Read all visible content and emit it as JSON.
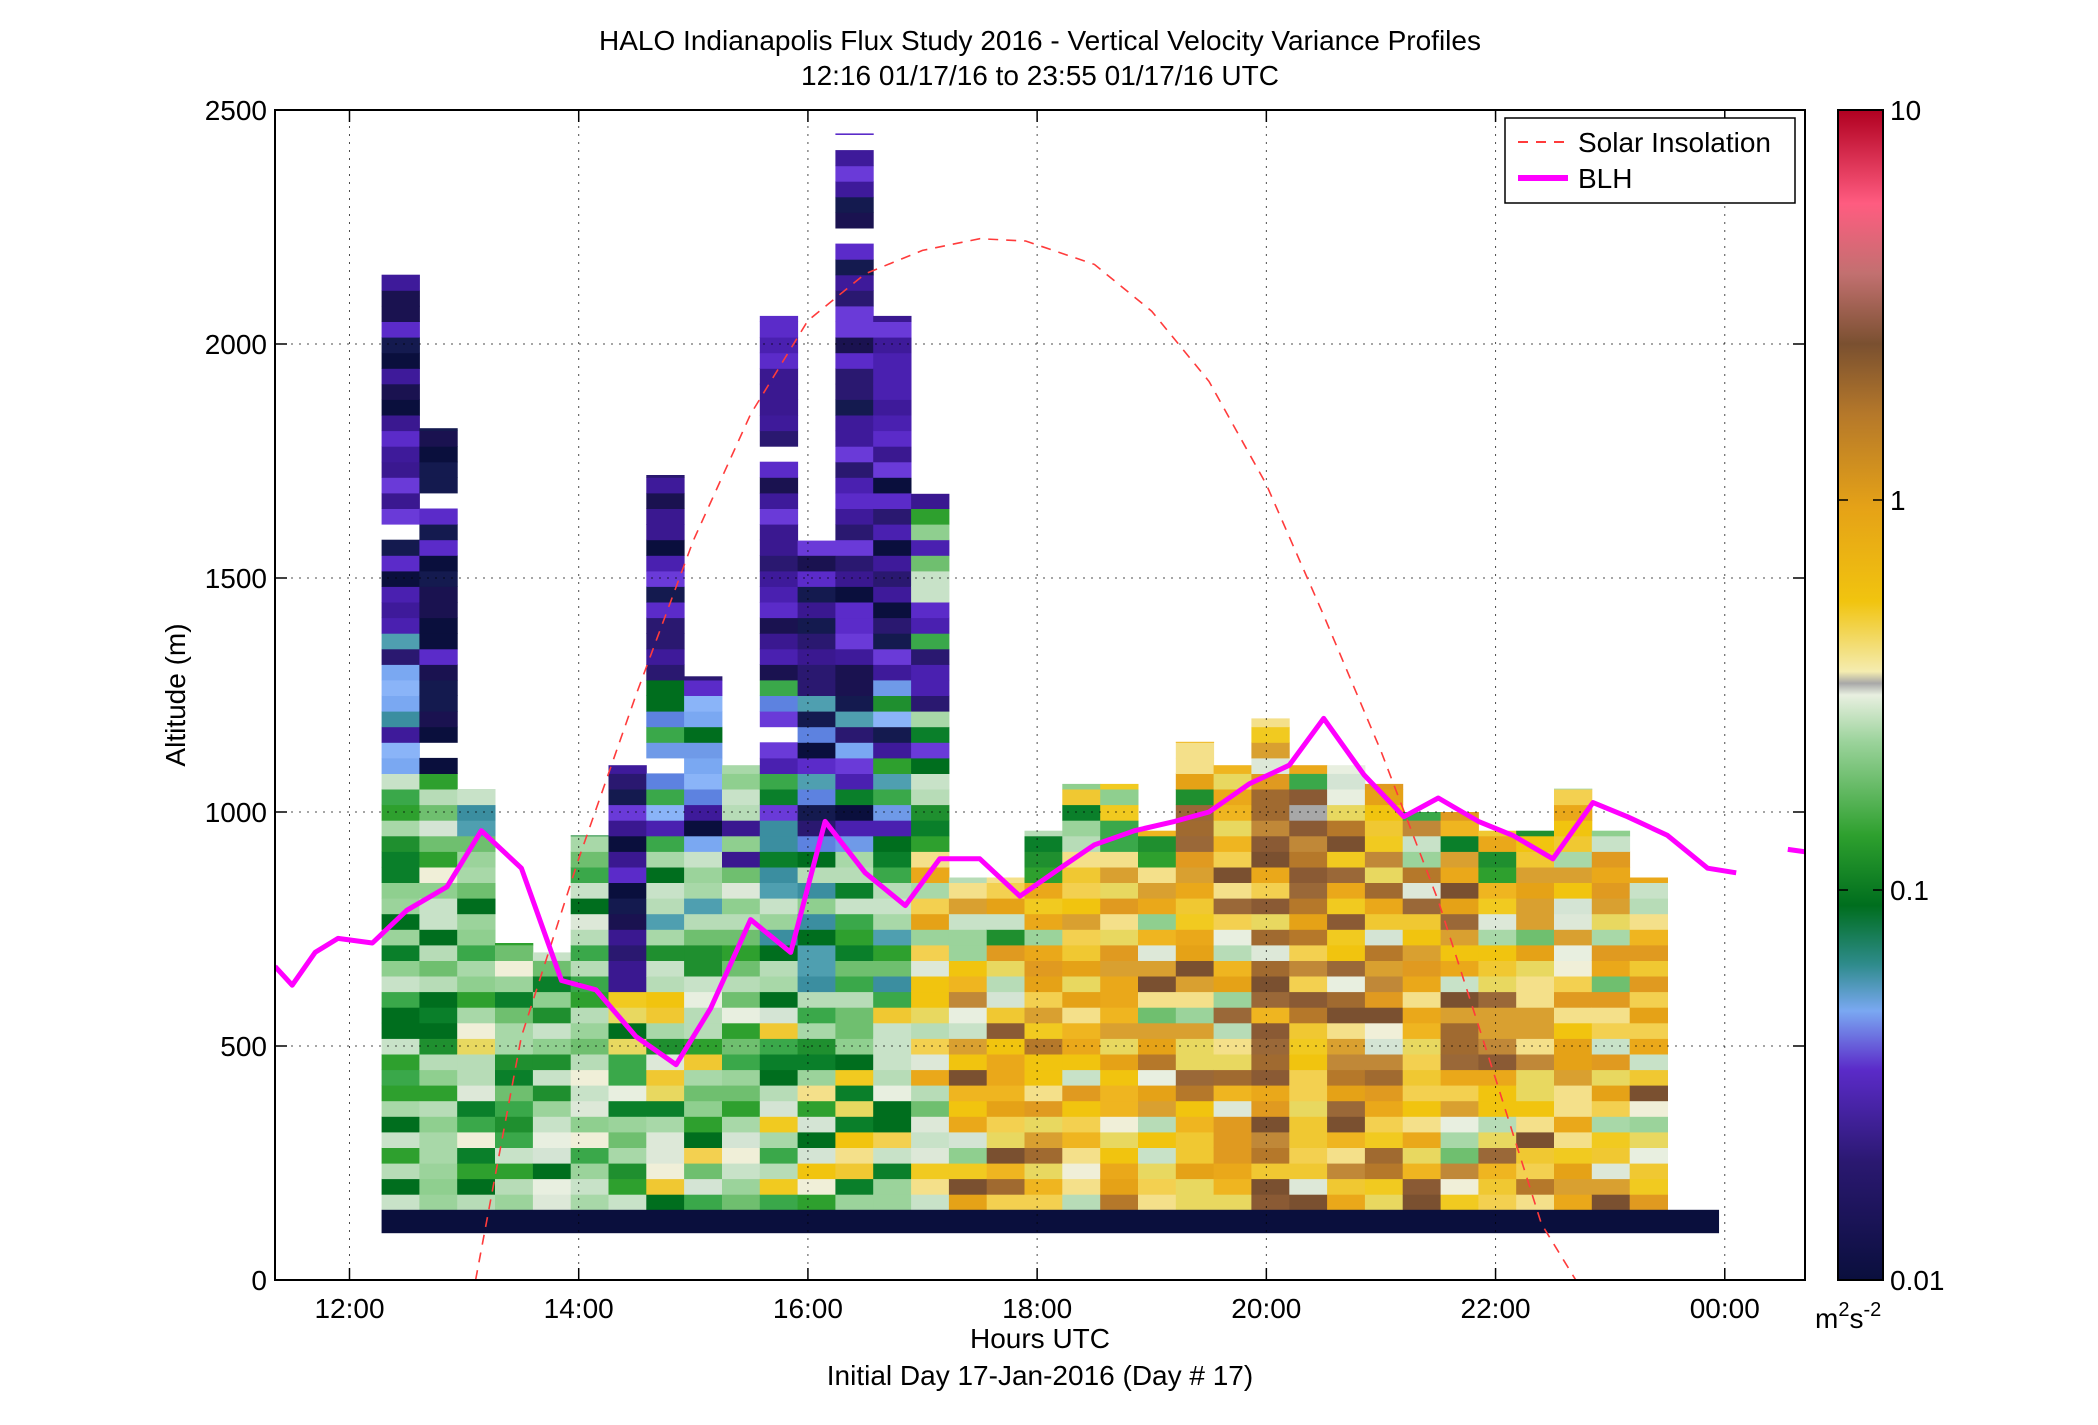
{
  "chart_data": {
    "type": "heatmap",
    "title": "HALO Indianapolis Flux Study 2016 - Vertical Velocity Variance Profiles",
    "subtitle": "12:16 01/17/16 to 23:55 01/17/16  UTC",
    "xlabel": "Hours UTC",
    "xlabel2": "Initial Day 17-Jan-2016 (Day # 17)",
    "ylabel": "Altitude (m)",
    "xlim": [
      11.35,
      24.7
    ],
    "ylim": [
      0,
      2500
    ],
    "x_ticks": [
      12,
      14,
      16,
      18,
      20,
      22,
      24
    ],
    "x_tick_labels": [
      "12:00",
      "14:00",
      "16:00",
      "18:00",
      "20:00",
      "22:00",
      "00:00"
    ],
    "y_ticks": [
      0,
      500,
      1000,
      1500,
      2000,
      2500
    ],
    "y_tick_labels": [
      "0",
      "500",
      "1000",
      "1500",
      "2000",
      "2500"
    ],
    "grid": true,
    "legend_position": "top-right",
    "legend": [
      {
        "label": "Solar Insolation",
        "color": "#ff3b3b",
        "style": "dashed"
      },
      {
        "label": "BLH",
        "color": "#ff00ff",
        "style": "solid"
      }
    ],
    "colorbar": {
      "scale": "log",
      "range": [
        0.01,
        10
      ],
      "tick_labels": [
        "0.01",
        "0.1",
        "1",
        "10"
      ],
      "unit_base": "m",
      "unit_exp1": "2",
      "unit_mid": "s",
      "unit_exp2": "-2"
    },
    "heatmap": {
      "x_start": 12.28,
      "x_step": 0.33,
      "y_step": 33.3,
      "columns": [
        {
          "base": 150,
          "top": 2150,
          "pattern": "wet_hi"
        },
        {
          "base": 150,
          "top": 1820,
          "pattern": "wet_mid"
        },
        {
          "base": 150,
          "top": 1050,
          "pattern": "green_light"
        },
        {
          "base": 150,
          "top": 720,
          "pattern": "green_light"
        },
        {
          "base": 150,
          "top": 700,
          "pattern": "green_mix"
        },
        {
          "base": 150,
          "top": 950,
          "pattern": "green_mix"
        },
        {
          "base": 150,
          "top": 1100,
          "pattern": "purple_low"
        },
        {
          "base": 150,
          "top": 1720,
          "pattern": "purple_high"
        },
        {
          "base": 150,
          "top": 1290,
          "pattern": "purple_high"
        },
        {
          "base": 150,
          "top": 1100,
          "pattern": "green_mix"
        },
        {
          "base": 150,
          "top": 2060,
          "pattern": "purple_high"
        },
        {
          "base": 150,
          "top": 1580,
          "pattern": "purple_high"
        },
        {
          "base": 150,
          "top": 2450,
          "pattern": "purple_high"
        },
        {
          "base": 150,
          "top": 2060,
          "pattern": "purple_high"
        },
        {
          "base": 150,
          "top": 1680,
          "pattern": "green_top"
        },
        {
          "base": 150,
          "top": 860,
          "pattern": "yellow_mix"
        },
        {
          "base": 150,
          "top": 860,
          "pattern": "yellow_mix"
        },
        {
          "base": 150,
          "top": 960,
          "pattern": "yellow_mix"
        },
        {
          "base": 150,
          "top": 1060,
          "pattern": "yellow_mix"
        },
        {
          "base": 150,
          "top": 1060,
          "pattern": "yellow_mix"
        },
        {
          "base": 150,
          "top": 960,
          "pattern": "yellow_mix"
        },
        {
          "base": 150,
          "top": 1150,
          "pattern": "orange_mix"
        },
        {
          "base": 150,
          "top": 1100,
          "pattern": "orange_mix"
        },
        {
          "base": 150,
          "top": 1200,
          "pattern": "orange_brown"
        },
        {
          "base": 150,
          "top": 1100,
          "pattern": "orange_brown"
        },
        {
          "base": 150,
          "top": 1100,
          "pattern": "orange_brown"
        },
        {
          "base": 150,
          "top": 1060,
          "pattern": "orange_brown"
        },
        {
          "base": 150,
          "top": 1000,
          "pattern": "orange_brown"
        },
        {
          "base": 150,
          "top": 1000,
          "pattern": "orange_mix"
        },
        {
          "base": 150,
          "top": 960,
          "pattern": "orange_mix"
        },
        {
          "base": 150,
          "top": 960,
          "pattern": "orange_mix"
        },
        {
          "base": 150,
          "top": 1050,
          "pattern": "yellow_mix"
        },
        {
          "base": 150,
          "top": 960,
          "pattern": "yellow_mix"
        },
        {
          "base": 150,
          "top": 860,
          "pattern": "yellow_mix"
        }
      ],
      "base_band": {
        "x_from": 12.28,
        "x_to": 23.95,
        "y_from": 100,
        "y_to": 150,
        "color": "#0a0f3d"
      }
    },
    "series": [
      {
        "name": "Solar Insolation",
        "x": [
          13.1,
          13.5,
          14.0,
          14.5,
          15.0,
          15.5,
          16.0,
          16.5,
          17.0,
          17.5,
          17.9,
          18.5,
          19.0,
          19.5,
          20.0,
          20.5,
          21.0,
          21.5,
          22.0,
          22.4,
          22.75
        ],
        "y": [
          0,
          520,
          900,
          1250,
          1580,
          1850,
          2050,
          2150,
          2200,
          2225,
          2220,
          2170,
          2070,
          1920,
          1700,
          1420,
          1130,
          810,
          430,
          120,
          -20
        ]
      },
      {
        "name": "BLH",
        "x": [
          11.35,
          11.5,
          11.7,
          11.9,
          12.2,
          12.5,
          12.85,
          13.15,
          13.5,
          13.85,
          14.15,
          14.5,
          14.85,
          15.15,
          15.5,
          15.85,
          16.15,
          16.5,
          16.85,
          17.15,
          17.5,
          17.85,
          18.2,
          18.5,
          18.85,
          19.2,
          19.5,
          19.85,
          20.2,
          20.5,
          20.85,
          21.2,
          21.5,
          21.85,
          22.15,
          22.5,
          22.85,
          23.15,
          23.5,
          23.85,
          24.1
        ],
        "y": [
          670,
          630,
          700,
          730,
          720,
          790,
          840,
          960,
          880,
          640,
          620,
          520,
          460,
          580,
          770,
          700,
          980,
          870,
          800,
          900,
          900,
          820,
          880,
          930,
          960,
          980,
          1000,
          1060,
          1100,
          1200,
          1080,
          990,
          1030,
          980,
          950,
          900,
          1020,
          990,
          950,
          880,
          870
        ]
      },
      {
        "name": "BLH_tail",
        "x": [
          24.55,
          24.7
        ],
        "y": [
          920,
          915
        ]
      }
    ]
  }
}
